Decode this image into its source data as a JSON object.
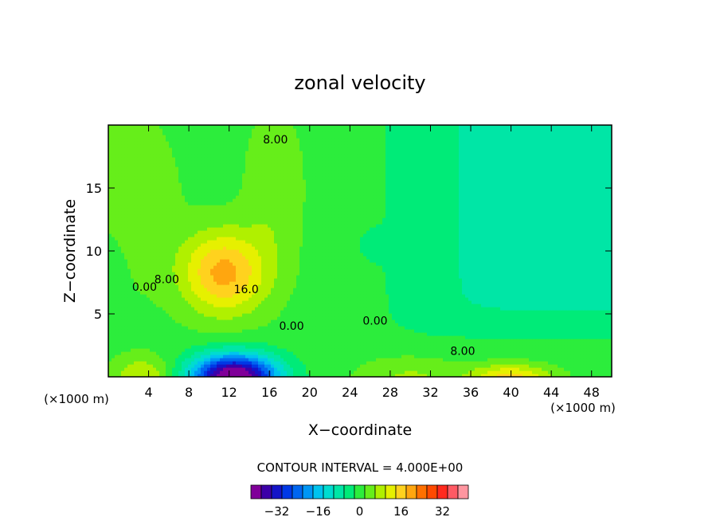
{
  "chart_data": {
    "type": "heatmap",
    "title": "zonal velocity",
    "xlabel": "X−coordinate",
    "ylabel": "Z−coordinate",
    "x_unit": "(×1000 m)",
    "y_unit": "(×1000 m)",
    "xlim": [
      0,
      50
    ],
    "ylim": [
      0,
      20
    ],
    "x_ticks": [
      4,
      8,
      12,
      16,
      20,
      24,
      28,
      32,
      36,
      40,
      44,
      48
    ],
    "y_ticks": [
      5,
      10,
      15
    ],
    "contour_interval_text": "CONTOUR INTERVAL = 4.000E+00",
    "contour_labels": [
      {
        "text": "8.00",
        "x": 16.6,
        "y": 18.8
      },
      {
        "text": "0.00",
        "x": 3.6,
        "y": 7.1
      },
      {
        "text": "8.00",
        "x": 5.8,
        "y": 7.7
      },
      {
        "text": "16.0",
        "x": 13.7,
        "y": 6.9
      },
      {
        "text": "0.00",
        "x": 18.2,
        "y": 4.0
      },
      {
        "text": "0.00",
        "x": 26.5,
        "y": 4.4
      },
      {
        "text": "8.00",
        "x": 35.2,
        "y": 2.0
      }
    ],
    "colorbar": {
      "ticks": [
        "−32",
        "−16",
        "0",
        "16",
        "32"
      ],
      "tick_values": [
        -32,
        -16,
        0,
        16,
        32
      ],
      "levels": [
        -40,
        -36,
        -32,
        -28,
        -24,
        -20,
        -16,
        -12,
        -8,
        -4,
        0,
        4,
        8,
        12,
        16,
        20,
        24,
        28,
        32,
        36,
        40
      ],
      "colors": [
        "#800099",
        "#3c00a8",
        "#1414c8",
        "#0038e6",
        "#0066f0",
        "#0096f5",
        "#00c3ee",
        "#00dcd0",
        "#00e6a6",
        "#00eb78",
        "#2ced3c",
        "#66ee1a",
        "#b0f000",
        "#e6f000",
        "#ffd21e",
        "#ffa60f",
        "#ff7000",
        "#ff4a00",
        "#ff2a1e",
        "#ff5a64",
        "#ff96a0"
      ]
    },
    "field_features": [
      {
        "name": "surface jet (negative core)",
        "x": 12.5,
        "z": 0.2,
        "value": -36
      },
      {
        "name": "positive maximum aloft",
        "x": 11.5,
        "z": 8.3,
        "value": 21
      },
      {
        "name": "upper left region",
        "x": 3,
        "z": 15,
        "value": 4
      },
      {
        "name": "upper right region",
        "x": 44,
        "z": 12,
        "value": -4
      },
      {
        "name": "surface positive patch",
        "x": 40,
        "z": 0.5,
        "value": 18
      }
    ]
  }
}
